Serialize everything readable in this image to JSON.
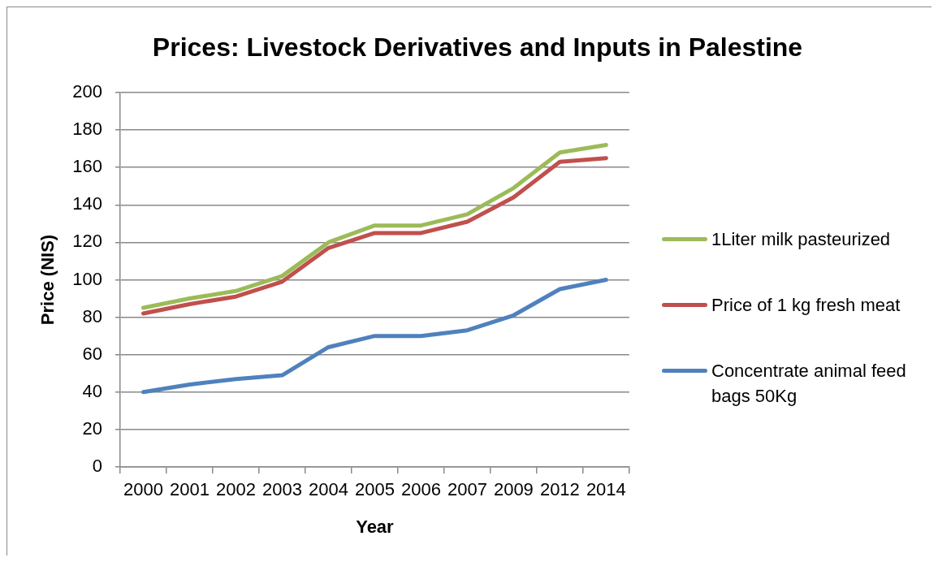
{
  "chart_data": {
    "type": "line",
    "title": "Prices: Livestock Derivatives and Inputs in Palestine",
    "xlabel": "Year",
    "ylabel": "Price (NIS)",
    "categories": [
      "2000",
      "2001",
      "2002",
      "2003",
      "2004",
      "2005",
      "2006",
      "2007",
      "2009",
      "2012",
      "2014"
    ],
    "series": [
      {
        "name": "1Liter milk pasteurized",
        "color": "#9bbb59",
        "values": [
          85,
          90,
          94,
          102,
          120,
          129,
          129,
          135,
          149,
          168,
          172
        ]
      },
      {
        "name": "Price of 1 kg fresh meat",
        "color": "#c0504d",
        "values": [
          82,
          87,
          91,
          99,
          117,
          125,
          125,
          131,
          144,
          163,
          165
        ]
      },
      {
        "name": "Concentrate animal feed bags 50Kg",
        "color": "#4f81bd",
        "values": [
          40,
          44,
          47,
          49,
          64,
          70,
          70,
          73,
          81,
          95,
          100
        ]
      }
    ],
    "ylim": [
      0,
      200
    ],
    "yticks": [
      0,
      20,
      40,
      60,
      80,
      100,
      120,
      140,
      160,
      180,
      200
    ],
    "grid": "y",
    "legend": "right",
    "marker": "none",
    "line_style": "solid"
  }
}
